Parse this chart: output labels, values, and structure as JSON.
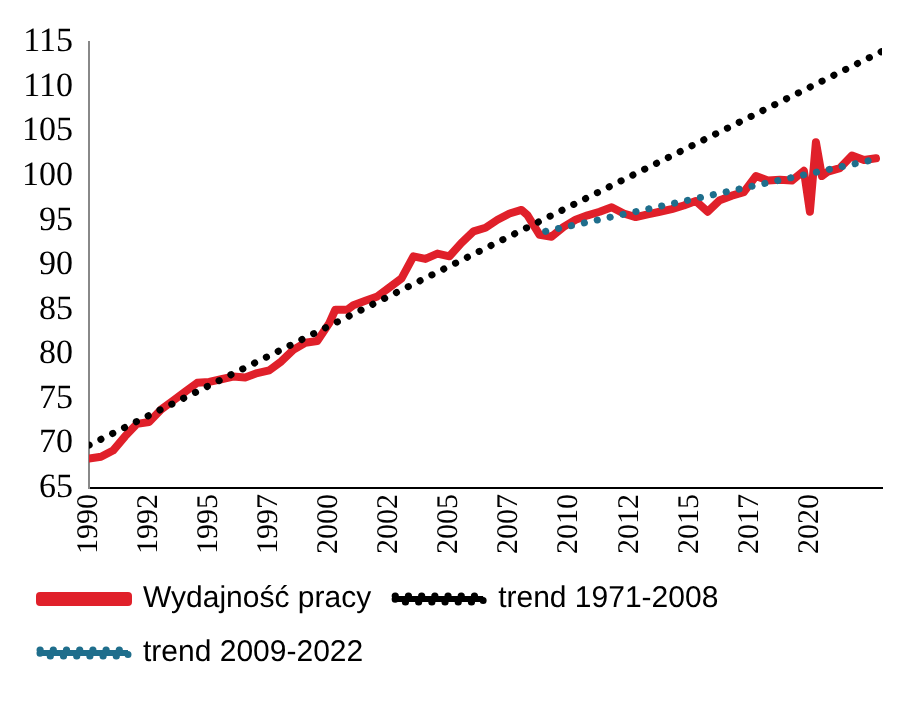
{
  "chart_data": {
    "type": "line",
    "xlim": [
      1990,
      2023
    ],
    "xticks": [
      1990,
      {
        "value": 1992.5,
        "label": "1992"
      },
      1995,
      {
        "value": 1997.5,
        "label": "1997"
      },
      2000,
      {
        "value": 2002.5,
        "label": "2002"
      },
      2005,
      {
        "value": 2007.5,
        "label": "2007"
      },
      2010,
      {
        "value": 2012.5,
        "label": "2012"
      },
      2015,
      {
        "value": 2017.5,
        "label": "2017"
      },
      2020
    ],
    "ylim": [
      65,
      115
    ],
    "yticks": [
      65,
      70,
      75,
      80,
      85,
      90,
      95,
      100,
      105,
      110,
      115
    ],
    "grid": false,
    "legend": "bottom",
    "marker": "none",
    "series": [
      {
        "name": "Wydajność pracy",
        "color": "#e0202a",
        "line_style": "solid",
        "x": [
          1990,
          1990.5,
          1991,
          1991.5,
          1992,
          1992.5,
          1993,
          1993.5,
          1994,
          1994.5,
          1995,
          1995.5,
          1996,
          1996.5,
          1997,
          1997.5,
          1998,
          1998.5,
          1999,
          1999.5,
          2000,
          2000.25,
          2000.75,
          2001,
          2001.5,
          2002,
          2002.5,
          2003,
          2003.5,
          2004,
          2004.5,
          2005,
          2005.5,
          2006,
          2006.5,
          2007,
          2007.5,
          2008,
          2008.25,
          2008.75,
          2009.25,
          2009.75,
          2010.25,
          2010.75,
          2011.25,
          2011.75,
          2012.25,
          2012.75,
          2013.25,
          2013.75,
          2014.25,
          2014.75,
          2015.25,
          2015.75,
          2016.25,
          2016.75,
          2017.25,
          2017.75,
          2018.25,
          2018.75,
          2019.25,
          2019.75,
          2020,
          2020.25,
          2020.5,
          2020.75,
          2021.25,
          2021.75,
          2022.25,
          2022.75
        ],
        "values": [
          68.3,
          68.5,
          69.2,
          70.8,
          72.2,
          72.4,
          73.8,
          74.8,
          75.8,
          76.8,
          76.9,
          77.2,
          77.5,
          77.4,
          77.9,
          78.2,
          79.2,
          80.5,
          81.3,
          81.5,
          83.5,
          85.0,
          85.0,
          85.5,
          86.0,
          86.5,
          87.5,
          88.5,
          91.0,
          90.7,
          91.3,
          91.0,
          92.5,
          93.8,
          94.2,
          95.1,
          95.8,
          96.2,
          95.6,
          93.4,
          93.2,
          94.3,
          95.1,
          95.6,
          96.0,
          96.5,
          95.8,
          95.4,
          95.7,
          96.0,
          96.3,
          96.7,
          97.2,
          96.0,
          97.3,
          97.8,
          98.2,
          100.0,
          99.5,
          99.6,
          99.5,
          100.6,
          96.0,
          103.8,
          100.0,
          100.5,
          100.9,
          102.3,
          101.8,
          102.0
        ]
      },
      {
        "name": "trend 1971-2008",
        "color": "#000000",
        "line_style": "dotted",
        "x": [
          1990,
          2023
        ],
        "values": [
          69.8,
          114.0
        ]
      },
      {
        "name": "trend 2009-2022",
        "color": "#1f6e8c",
        "line_style": "dotted",
        "x": [
          2009,
          2022.75
        ],
        "values": [
          93.8,
          101.9
        ]
      }
    ]
  }
}
